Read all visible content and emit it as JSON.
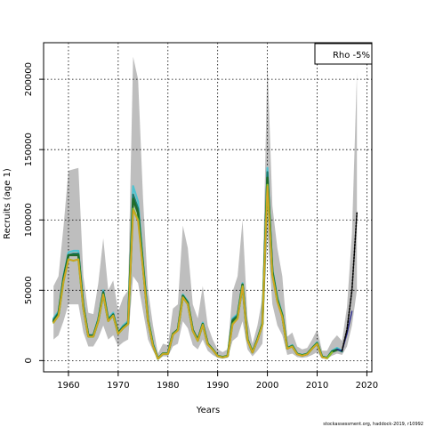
{
  "chart_data": {
    "type": "line",
    "title": "",
    "xlabel": "Years",
    "ylabel": "Recruits (age 1)",
    "xlim": [
      1955,
      2021
    ],
    "ylim": [
      -8000,
      226000
    ],
    "x_ticks": [
      1960,
      1970,
      1980,
      1990,
      2000,
      2010,
      2020
    ],
    "y_ticks": [
      0,
      50000,
      100000,
      150000,
      200000
    ],
    "grid": true,
    "legend": {
      "text": "Rho -5%",
      "placement": "top-right"
    },
    "footer": "stockassessment.org, haddock-2019, r10992",
    "colors": {
      "band": "#bebebe",
      "cyan": "#4fc3d0",
      "teal": "#1a7a6e",
      "dark_green": "#1f6b2a",
      "lime": "#8fbf2a",
      "orange": "#d9a020",
      "navy": "#2a2a8c",
      "black": "#000000"
    },
    "confidence_band": {
      "x": [
        1957,
        1958,
        1959,
        1960,
        1961,
        1962,
        1963,
        1964,
        1965,
        1966,
        1967,
        1968,
        1969,
        1970,
        1971,
        1972,
        1973,
        1974,
        1975,
        1976,
        1977,
        1978,
        1979,
        1980,
        1981,
        1982,
        1983,
        1984,
        1985,
        1986,
        1987,
        1988,
        1989,
        1990,
        1991,
        1992,
        1993,
        1994,
        1995,
        1996,
        1997,
        1998,
        1999,
        2000,
        2001,
        2002,
        2003,
        2004,
        2005,
        2006,
        2007,
        2008,
        2009,
        2010,
        2011,
        2012,
        2013,
        2014,
        2015,
        2016,
        2017,
        2018
      ],
      "upper": [
        53000,
        60000,
        95000,
        135000,
        136000,
        137000,
        60000,
        34000,
        33000,
        55000,
        87000,
        50000,
        57000,
        35000,
        45000,
        50000,
        216000,
        200000,
        115000,
        50000,
        25000,
        5000,
        12000,
        11000,
        37000,
        40000,
        96000,
        80000,
        40000,
        30000,
        53000,
        25000,
        15000,
        8000,
        6000,
        8000,
        49000,
        60000,
        100000,
        30000,
        12000,
        25000,
        45000,
        213000,
        110000,
        80000,
        60000,
        17000,
        20000,
        10000,
        8000,
        9000,
        15000,
        22000,
        7000,
        7000,
        14000,
        18000,
        14000,
        38000,
        90000,
        205000
      ],
      "lower": [
        15000,
        18000,
        28000,
        40000,
        40000,
        40000,
        20000,
        10000,
        10000,
        16000,
        25000,
        15000,
        18000,
        10000,
        13000,
        15000,
        60000,
        55000,
        35000,
        15000,
        7000,
        500,
        3000,
        3000,
        10000,
        12000,
        28000,
        23000,
        11000,
        8000,
        15000,
        7000,
        4000,
        2000,
        1500,
        2000,
        14000,
        17000,
        28000,
        8000,
        3000,
        7000,
        12000,
        90000,
        40000,
        25000,
        18000,
        4000,
        5000,
        2500,
        2000,
        2500,
        4000,
        6000,
        1500,
        1500,
        3500,
        5000,
        4000,
        10000,
        25000,
        50000
      ]
    },
    "series": [
      {
        "color": "cyan",
        "width": 2.2,
        "x": [
          1957,
          1958,
          1959,
          1960,
          1961,
          1962,
          1963,
          1964,
          1965,
          1966,
          1967,
          1968,
          1969,
          1970,
          1971,
          1972,
          1973,
          1974,
          1975,
          1976,
          1977,
          1978,
          1979,
          1980,
          1981,
          1982,
          1983,
          1984,
          1985,
          1986,
          1987,
          1988,
          1989,
          1990,
          1991,
          1992,
          1993,
          1994,
          1995,
          1996,
          1997,
          1998,
          1999,
          2000,
          2001,
          2002,
          2003,
          2004,
          2005,
          2006,
          2007,
          2008,
          2009,
          2010,
          2011,
          2012,
          2013,
          2014,
          2015
        ],
        "values": [
          30000,
          35000,
          60000,
          77000,
          78000,
          78000,
          40000,
          18000,
          18000,
          30000,
          50000,
          30000,
          34000,
          20000,
          25000,
          28000,
          124000,
          113000,
          70000,
          30000,
          12000,
          1500,
          5000,
          5000,
          19000,
          22000,
          47000,
          42000,
          22000,
          15000,
          27000,
          12000,
          8000,
          3500,
          2500,
          3500,
          30000,
          33000,
          55000,
          15000,
          6000,
          15000,
          27000,
          137000,
          65000,
          45000,
          33000,
          9000,
          11000,
          5000,
          4000,
          5000,
          9000,
          13000,
          3000,
          2000,
          7000,
          9000,
          7000
        ]
      },
      {
        "color": "teal",
        "width": 2.2,
        "x": [
          1957,
          1958,
          1959,
          1960,
          1961,
          1962,
          1963,
          1964,
          1965,
          1966,
          1967,
          1968,
          1969,
          1970,
          1971,
          1972,
          1973,
          1974,
          1975,
          1976,
          1977,
          1978,
          1979,
          1980,
          1981,
          1982,
          1983,
          1984,
          1985,
          1986,
          1987,
          1988,
          1989,
          1990,
          1991,
          1992,
          1993,
          1994,
          1995,
          1996,
          1997,
          1998,
          1999,
          2000,
          2001,
          2002,
          2003,
          2004,
          2005,
          2006,
          2007,
          2008,
          2009,
          2010,
          2011,
          2012,
          2013,
          2014,
          2015
        ],
        "values": [
          29000,
          34000,
          59000,
          75000,
          76000,
          76000,
          39000,
          18000,
          18000,
          29000,
          49000,
          29000,
          33000,
          20000,
          24000,
          27000,
          118000,
          108000,
          68000,
          29000,
          11000,
          1400,
          5000,
          5000,
          19000,
          22000,
          46000,
          41000,
          22000,
          15000,
          26000,
          12000,
          8000,
          3300,
          2400,
          3300,
          29000,
          32000,
          54000,
          15000,
          6000,
          15000,
          26000,
          134000,
          64000,
          44000,
          32000,
          8800,
          10500,
          4800,
          3800,
          4800,
          8800,
          12500,
          2800,
          1900,
          6500,
          8000,
          6500
        ]
      },
      {
        "color": "dark_green",
        "width": 2.6,
        "x": [
          1957,
          1958,
          1959,
          1960,
          1961,
          1962,
          1963,
          1964,
          1965,
          1966,
          1967,
          1968,
          1969,
          1970,
          1971,
          1972,
          1973,
          1974,
          1975,
          1976,
          1977,
          1978,
          1979,
          1980,
          1981,
          1982,
          1983,
          1984,
          1985,
          1986,
          1987,
          1988,
          1989,
          1990,
          1991,
          1992,
          1993,
          1994,
          1995,
          1996,
          1997,
          1998,
          1999,
          2000,
          2001,
          2002,
          2003,
          2004,
          2005,
          2006,
          2007,
          2008,
          2009,
          2010,
          2011,
          2012,
          2013,
          2014
        ],
        "values": [
          28000,
          33000,
          58000,
          75000,
          75000,
          75000,
          38000,
          17500,
          17500,
          28500,
          48000,
          28500,
          32500,
          19500,
          23500,
          26500,
          115000,
          105000,
          67000,
          28500,
          11000,
          1400,
          5000,
          5000,
          19000,
          22000,
          46000,
          41000,
          21500,
          14500,
          26000,
          12000,
          8000,
          3300,
          2400,
          3300,
          28000,
          31000,
          54000,
          15000,
          6000,
          15000,
          26000,
          130000,
          63000,
          43000,
          32000,
          8700,
          10300,
          4700,
          3700,
          4700,
          8700,
          12300,
          2700,
          1800,
          6300,
          7600
        ]
      },
      {
        "color": "lime",
        "width": 2.2,
        "x": [
          1957,
          1958,
          1959,
          1960,
          1961,
          1962,
          1963,
          1964,
          1965,
          1966,
          1967,
          1968,
          1969,
          1970,
          1971,
          1972,
          1973,
          1974,
          1975,
          1976,
          1977,
          1978,
          1979,
          1980,
          1981,
          1982,
          1983,
          1984,
          1985,
          1986,
          1987,
          1988,
          1989,
          1990,
          1991,
          1992,
          1993,
          1994,
          1995,
          1996,
          1997,
          1998,
          1999,
          2000,
          2001,
          2002,
          2003,
          2004,
          2005,
          2006,
          2007,
          2008,
          2009,
          2010,
          2011,
          2012,
          2013
        ],
        "values": [
          27000,
          32000,
          56000,
          72000,
          71000,
          72000,
          37000,
          17000,
          17000,
          28000,
          47000,
          28000,
          32000,
          19000,
          23000,
          26000,
          108000,
          100000,
          65000,
          28000,
          10500,
          1300,
          4800,
          4800,
          18500,
          21500,
          45000,
          40000,
          21000,
          14000,
          25500,
          11500,
          7800,
          3200,
          2300,
          3200,
          26000,
          30000,
          53000,
          14500,
          5800,
          14500,
          25500,
          125000,
          61000,
          42000,
          31000,
          8500,
          10000,
          4500,
          3500,
          4500,
          8500,
          12000,
          2500,
          1700,
          5800
        ]
      },
      {
        "color": "orange",
        "width": 1.4,
        "x": [
          1957,
          1958,
          1959,
          1960,
          1961,
          1962,
          1963,
          1964,
          1965,
          1966,
          1967,
          1968,
          1969,
          1970,
          1971,
          1972,
          1973,
          1974,
          1975,
          1976,
          1977,
          1978,
          1979,
          1980,
          1981,
          1982,
          1983,
          1984,
          1985,
          1986,
          1987,
          1988,
          1989,
          1990,
          1991,
          1992,
          1993,
          1994,
          1995,
          1996,
          1997,
          1998,
          1999,
          2000,
          2001,
          2002,
          2003,
          2004,
          2005,
          2006,
          2007,
          2008,
          2009,
          2010,
          2011,
          2012
        ],
        "values": [
          27000,
          32000,
          56000,
          72000,
          71000,
          72000,
          37000,
          17000,
          17000,
          28000,
          47000,
          28000,
          32000,
          19000,
          23000,
          26000,
          107000,
          99000,
          64000,
          27500,
          10300,
          1300,
          4700,
          4700,
          18300,
          21300,
          45000,
          40000,
          21000,
          14000,
          25300,
          11300,
          7700,
          3100,
          2200,
          3100,
          25500,
          29500,
          52500,
          14300,
          5700,
          14300,
          25300,
          124000,
          60500,
          41500,
          30500,
          8400,
          9900,
          4400,
          3400,
          4400,
          8400,
          11800,
          2400,
          1600
        ]
      },
      {
        "color": "navy",
        "width": 1.4,
        "x": [
          2014,
          2015,
          2016,
          2017
        ],
        "values": [
          8000,
          7000,
          19000,
          35000
        ]
      },
      {
        "color": "black",
        "width": 1.6,
        "dashed": true,
        "x": [
          2015,
          2016,
          2017,
          2018
        ],
        "values": [
          7000,
          22000,
          50000,
          105000
        ]
      }
    ]
  }
}
